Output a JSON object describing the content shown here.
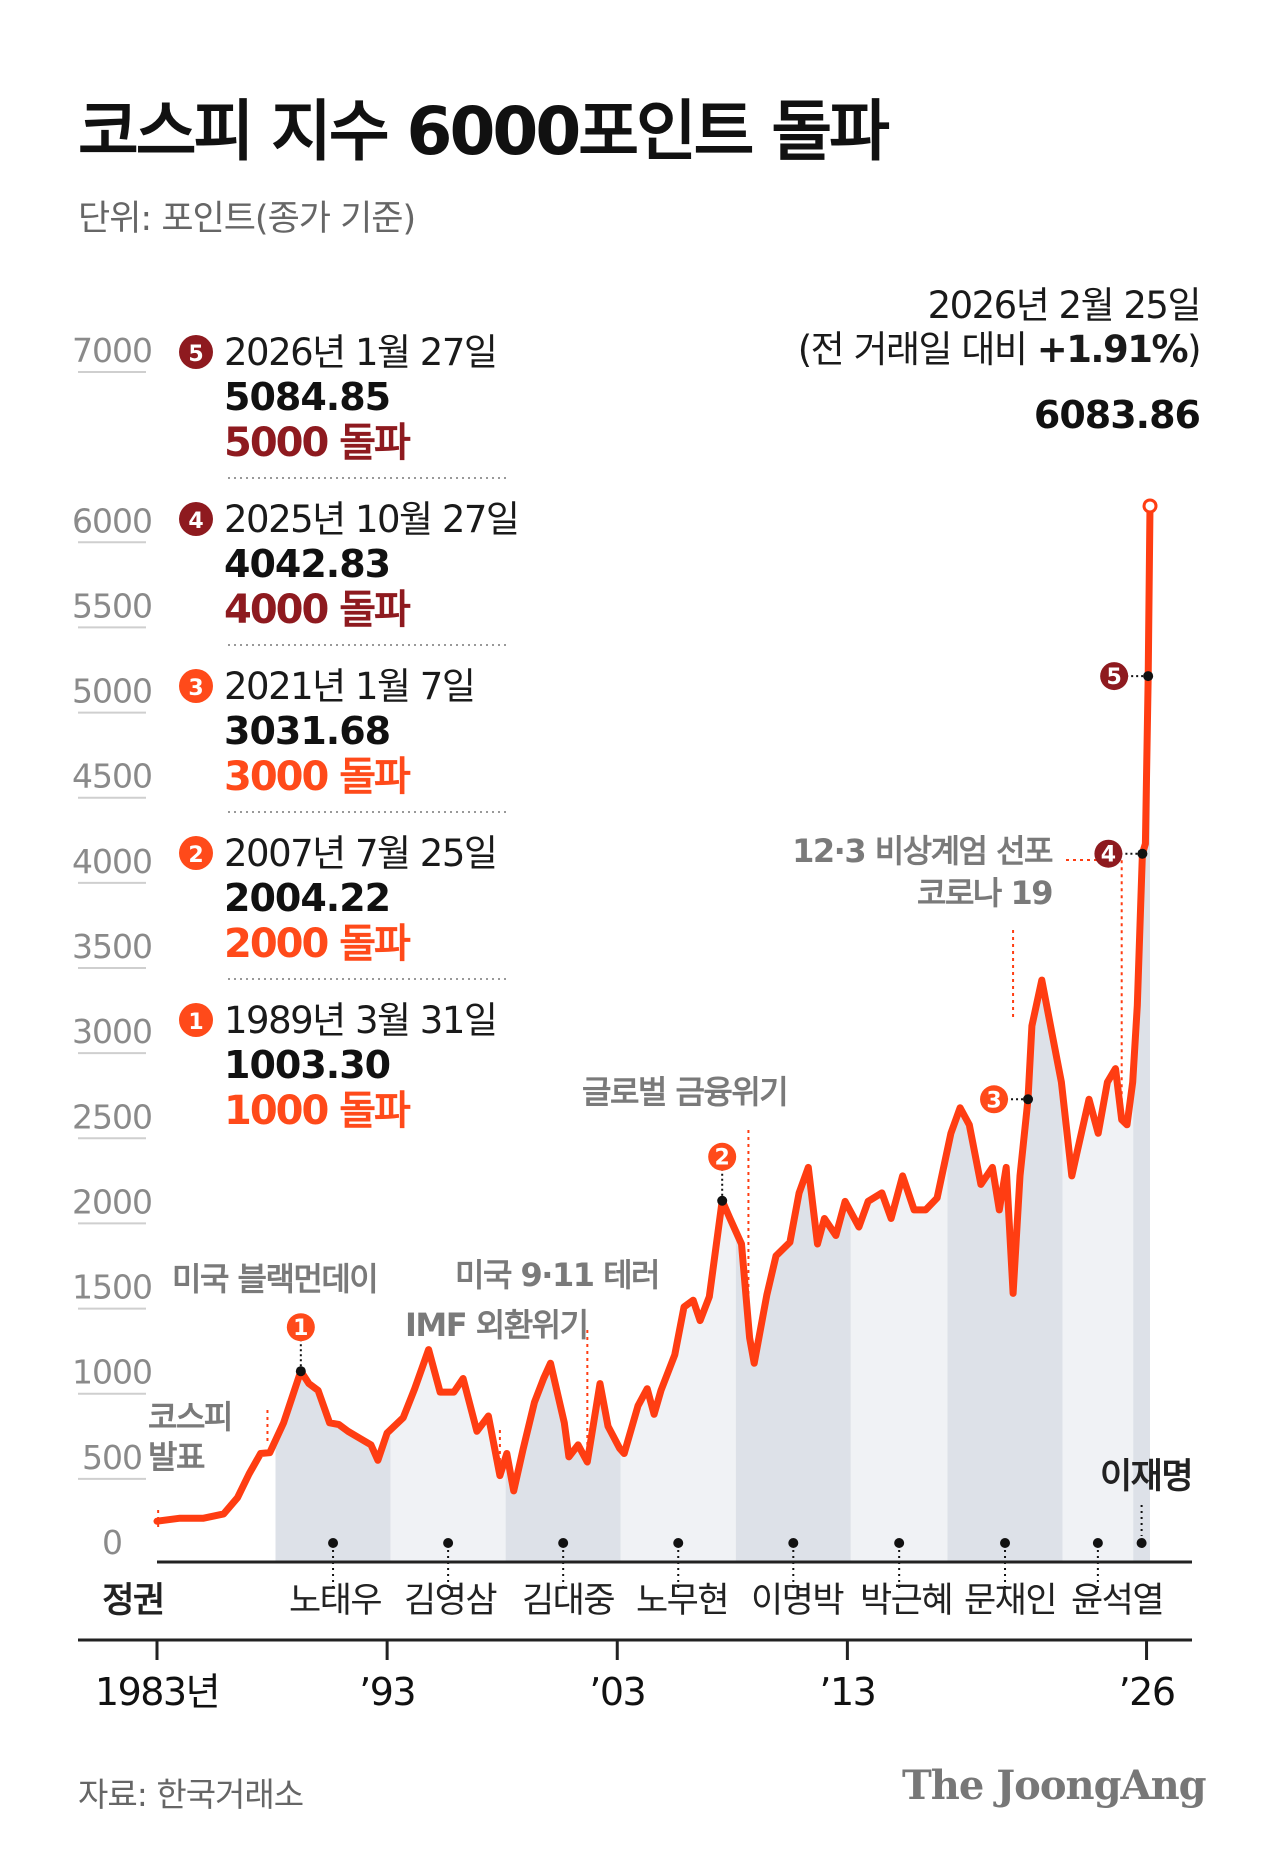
{
  "title": "코스피 지수 6000포인트 돌파",
  "unit_label": "단위: 포인트(종가 기준)",
  "source": "자료: 한국거래소",
  "brand": "The JoongAng",
  "colors": {
    "line": "#ff3d12",
    "dark_badge": "#8e1a1f",
    "orange_badge": "#ff4a1a",
    "highlight_value": "#e8160c",
    "band_dark": "#dde1e8",
    "band_light": "#f0f2f5",
    "axis": "#222222",
    "gray_text": "#7a7a7a"
  },
  "latest": {
    "date": "2026년 2월 25일",
    "change_prefix": "(전 거래일 대비 ",
    "change_value": "+1.91%",
    "change_suffix": ")",
    "value": "6083.86"
  },
  "milestones": [
    {
      "num": "5",
      "date": "2026년 1월 27일",
      "value": "5084.85",
      "label": "5000 돌파",
      "badge": "dark"
    },
    {
      "num": "4",
      "date": "2025년 10월 27일",
      "value": "4042.83",
      "label": "4000 돌파",
      "badge": "dark"
    },
    {
      "num": "3",
      "date": "2021년 1월 7일",
      "value": "3031.68",
      "label": "3000 돌파",
      "badge": "orange"
    },
    {
      "num": "2",
      "date": "2007년 7월 25일",
      "value": "2004.22",
      "label": "2000 돌파",
      "badge": "orange"
    },
    {
      "num": "1",
      "date": "1989년 3월 31일",
      "value": "1003.30",
      "label": "1000 돌파",
      "badge": "orange"
    }
  ],
  "events": [
    {
      "lines": [
        "코스피",
        "발표"
      ],
      "year": 1983.05
    },
    {
      "lines": [
        "미국 블랙먼데이"
      ],
      "year": 1987.8
    },
    {
      "lines": [
        "IMF 외환위기"
      ],
      "year": 1997.9
    },
    {
      "lines": [
        "미국 9·11 테러"
      ],
      "year": 2001.7
    },
    {
      "lines": [
        "글로벌 금융위기"
      ],
      "year": 2008.7
    },
    {
      "lines": [
        "코로나 19"
      ],
      "year": 2020.2
    },
    {
      "lines": [
        "12·3 비상계엄 선포"
      ],
      "year": 2024.92
    }
  ],
  "eras_label": "정권",
  "eras": [
    {
      "name": "노태우",
      "start": 1988.15,
      "end": 1993.15,
      "shade": "dark"
    },
    {
      "name": "김영삼",
      "start": 1993.15,
      "end": 1998.15,
      "shade": "light"
    },
    {
      "name": "김대중",
      "start": 1998.15,
      "end": 2003.15,
      "shade": "dark"
    },
    {
      "name": "노무현",
      "start": 2003.15,
      "end": 2008.15,
      "shade": "light"
    },
    {
      "name": "이명박",
      "start": 2008.15,
      "end": 2013.15,
      "shade": "dark"
    },
    {
      "name": "박근혜",
      "start": 2013.15,
      "end": 2017.35,
      "shade": "light"
    },
    {
      "name": "문재인",
      "start": 2017.35,
      "end": 2022.35,
      "shade": "dark"
    },
    {
      "name": "윤석열",
      "start": 2022.35,
      "end": 2025.42,
      "shade": "light"
    },
    {
      "name": "이재명",
      "start": 2025.42,
      "end": 2026.15,
      "shade": "dark"
    }
  ],
  "chart_data": {
    "type": "line",
    "title": "코스피 지수 6000포인트 돌파",
    "ylabel": "단위: 포인트(종가 기준)",
    "ylim": [
      0,
      7000
    ],
    "yticks": [
      0,
      500,
      1000,
      1500,
      2000,
      2500,
      3000,
      3500,
      4000,
      4500,
      5000,
      5500,
      6000,
      7000
    ],
    "xlim": [
      1983,
      2026.15
    ],
    "xticks": [
      {
        "label": "1983년",
        "year": 1983
      },
      {
        "label": "’93",
        "year": 1993
      },
      {
        "label": "’03",
        "year": 2003
      },
      {
        "label": "’13",
        "year": 2013
      },
      {
        "label": "’26",
        "year": 2026
      }
    ],
    "grid": false,
    "series": [
      {
        "points": [
          [
            1983.0,
            122
          ],
          [
            1984.0,
            140
          ],
          [
            1985.0,
            139
          ],
          [
            1985.9,
            165
          ],
          [
            1986.5,
            260
          ],
          [
            1987.0,
            400
          ],
          [
            1987.5,
            520
          ],
          [
            1987.9,
            525
          ],
          [
            1988.5,
            700
          ],
          [
            1989.25,
            1003
          ],
          [
            1989.6,
            930
          ],
          [
            1990.0,
            890
          ],
          [
            1990.5,
            700
          ],
          [
            1990.9,
            690
          ],
          [
            1991.3,
            650
          ],
          [
            1991.8,
            610
          ],
          [
            1992.3,
            570
          ],
          [
            1992.6,
            480
          ],
          [
            1993.0,
            640
          ],
          [
            1993.7,
            730
          ],
          [
            1994.2,
            900
          ],
          [
            1994.8,
            1130
          ],
          [
            1995.3,
            880
          ],
          [
            1995.9,
            880
          ],
          [
            1996.3,
            960
          ],
          [
            1996.9,
            650
          ],
          [
            1997.4,
            740
          ],
          [
            1997.9,
            390
          ],
          [
            1998.2,
            520
          ],
          [
            1998.5,
            300
          ],
          [
            1998.9,
            540
          ],
          [
            1999.4,
            820
          ],
          [
            1999.8,
            960
          ],
          [
            2000.1,
            1050
          ],
          [
            2000.7,
            700
          ],
          [
            2000.9,
            500
          ],
          [
            2001.3,
            570
          ],
          [
            2001.7,
            470
          ],
          [
            2002.0,
            720
          ],
          [
            2002.25,
            930
          ],
          [
            2002.6,
            680
          ],
          [
            2003.1,
            550
          ],
          [
            2003.3,
            520
          ],
          [
            2003.9,
            800
          ],
          [
            2004.3,
            900
          ],
          [
            2004.6,
            750
          ],
          [
            2004.9,
            890
          ],
          [
            2005.5,
            1100
          ],
          [
            2005.9,
            1380
          ],
          [
            2006.3,
            1420
          ],
          [
            2006.6,
            1300
          ],
          [
            2007.0,
            1440
          ],
          [
            2007.56,
            2004
          ],
          [
            2007.9,
            1900
          ],
          [
            2008.4,
            1750
          ],
          [
            2008.75,
            1200
          ],
          [
            2008.95,
            1050
          ],
          [
            2009.5,
            1450
          ],
          [
            2009.9,
            1680
          ],
          [
            2010.5,
            1760
          ],
          [
            2010.9,
            2050
          ],
          [
            2011.3,
            2200
          ],
          [
            2011.7,
            1750
          ],
          [
            2012.0,
            1900
          ],
          [
            2012.5,
            1800
          ],
          [
            2012.9,
            2000
          ],
          [
            2013.5,
            1850
          ],
          [
            2013.9,
            2000
          ],
          [
            2014.5,
            2050
          ],
          [
            2014.9,
            1900
          ],
          [
            2015.4,
            2150
          ],
          [
            2015.9,
            1950
          ],
          [
            2016.4,
            1950
          ],
          [
            2016.9,
            2020
          ],
          [
            2017.5,
            2400
          ],
          [
            2017.9,
            2550
          ],
          [
            2018.3,
            2450
          ],
          [
            2018.8,
            2100
          ],
          [
            2019.3,
            2200
          ],
          [
            2019.6,
            1950
          ],
          [
            2019.9,
            2200
          ],
          [
            2020.2,
            1460
          ],
          [
            2020.5,
            2150
          ],
          [
            2020.85,
            2600
          ],
          [
            2021.02,
            3031
          ],
          [
            2021.45,
            3300
          ],
          [
            2021.9,
            2980
          ],
          [
            2022.3,
            2700
          ],
          [
            2022.75,
            2150
          ],
          [
            2023.0,
            2300
          ],
          [
            2023.5,
            2600
          ],
          [
            2023.9,
            2400
          ],
          [
            2024.3,
            2700
          ],
          [
            2024.65,
            2780
          ],
          [
            2024.92,
            2480
          ],
          [
            2025.15,
            2450
          ],
          [
            2025.4,
            2700
          ],
          [
            2025.6,
            3150
          ],
          [
            2025.82,
            4042
          ],
          [
            2025.95,
            4100
          ],
          [
            2026.07,
            5085
          ],
          [
            2026.15,
            6084
          ]
        ]
      }
    ]
  }
}
